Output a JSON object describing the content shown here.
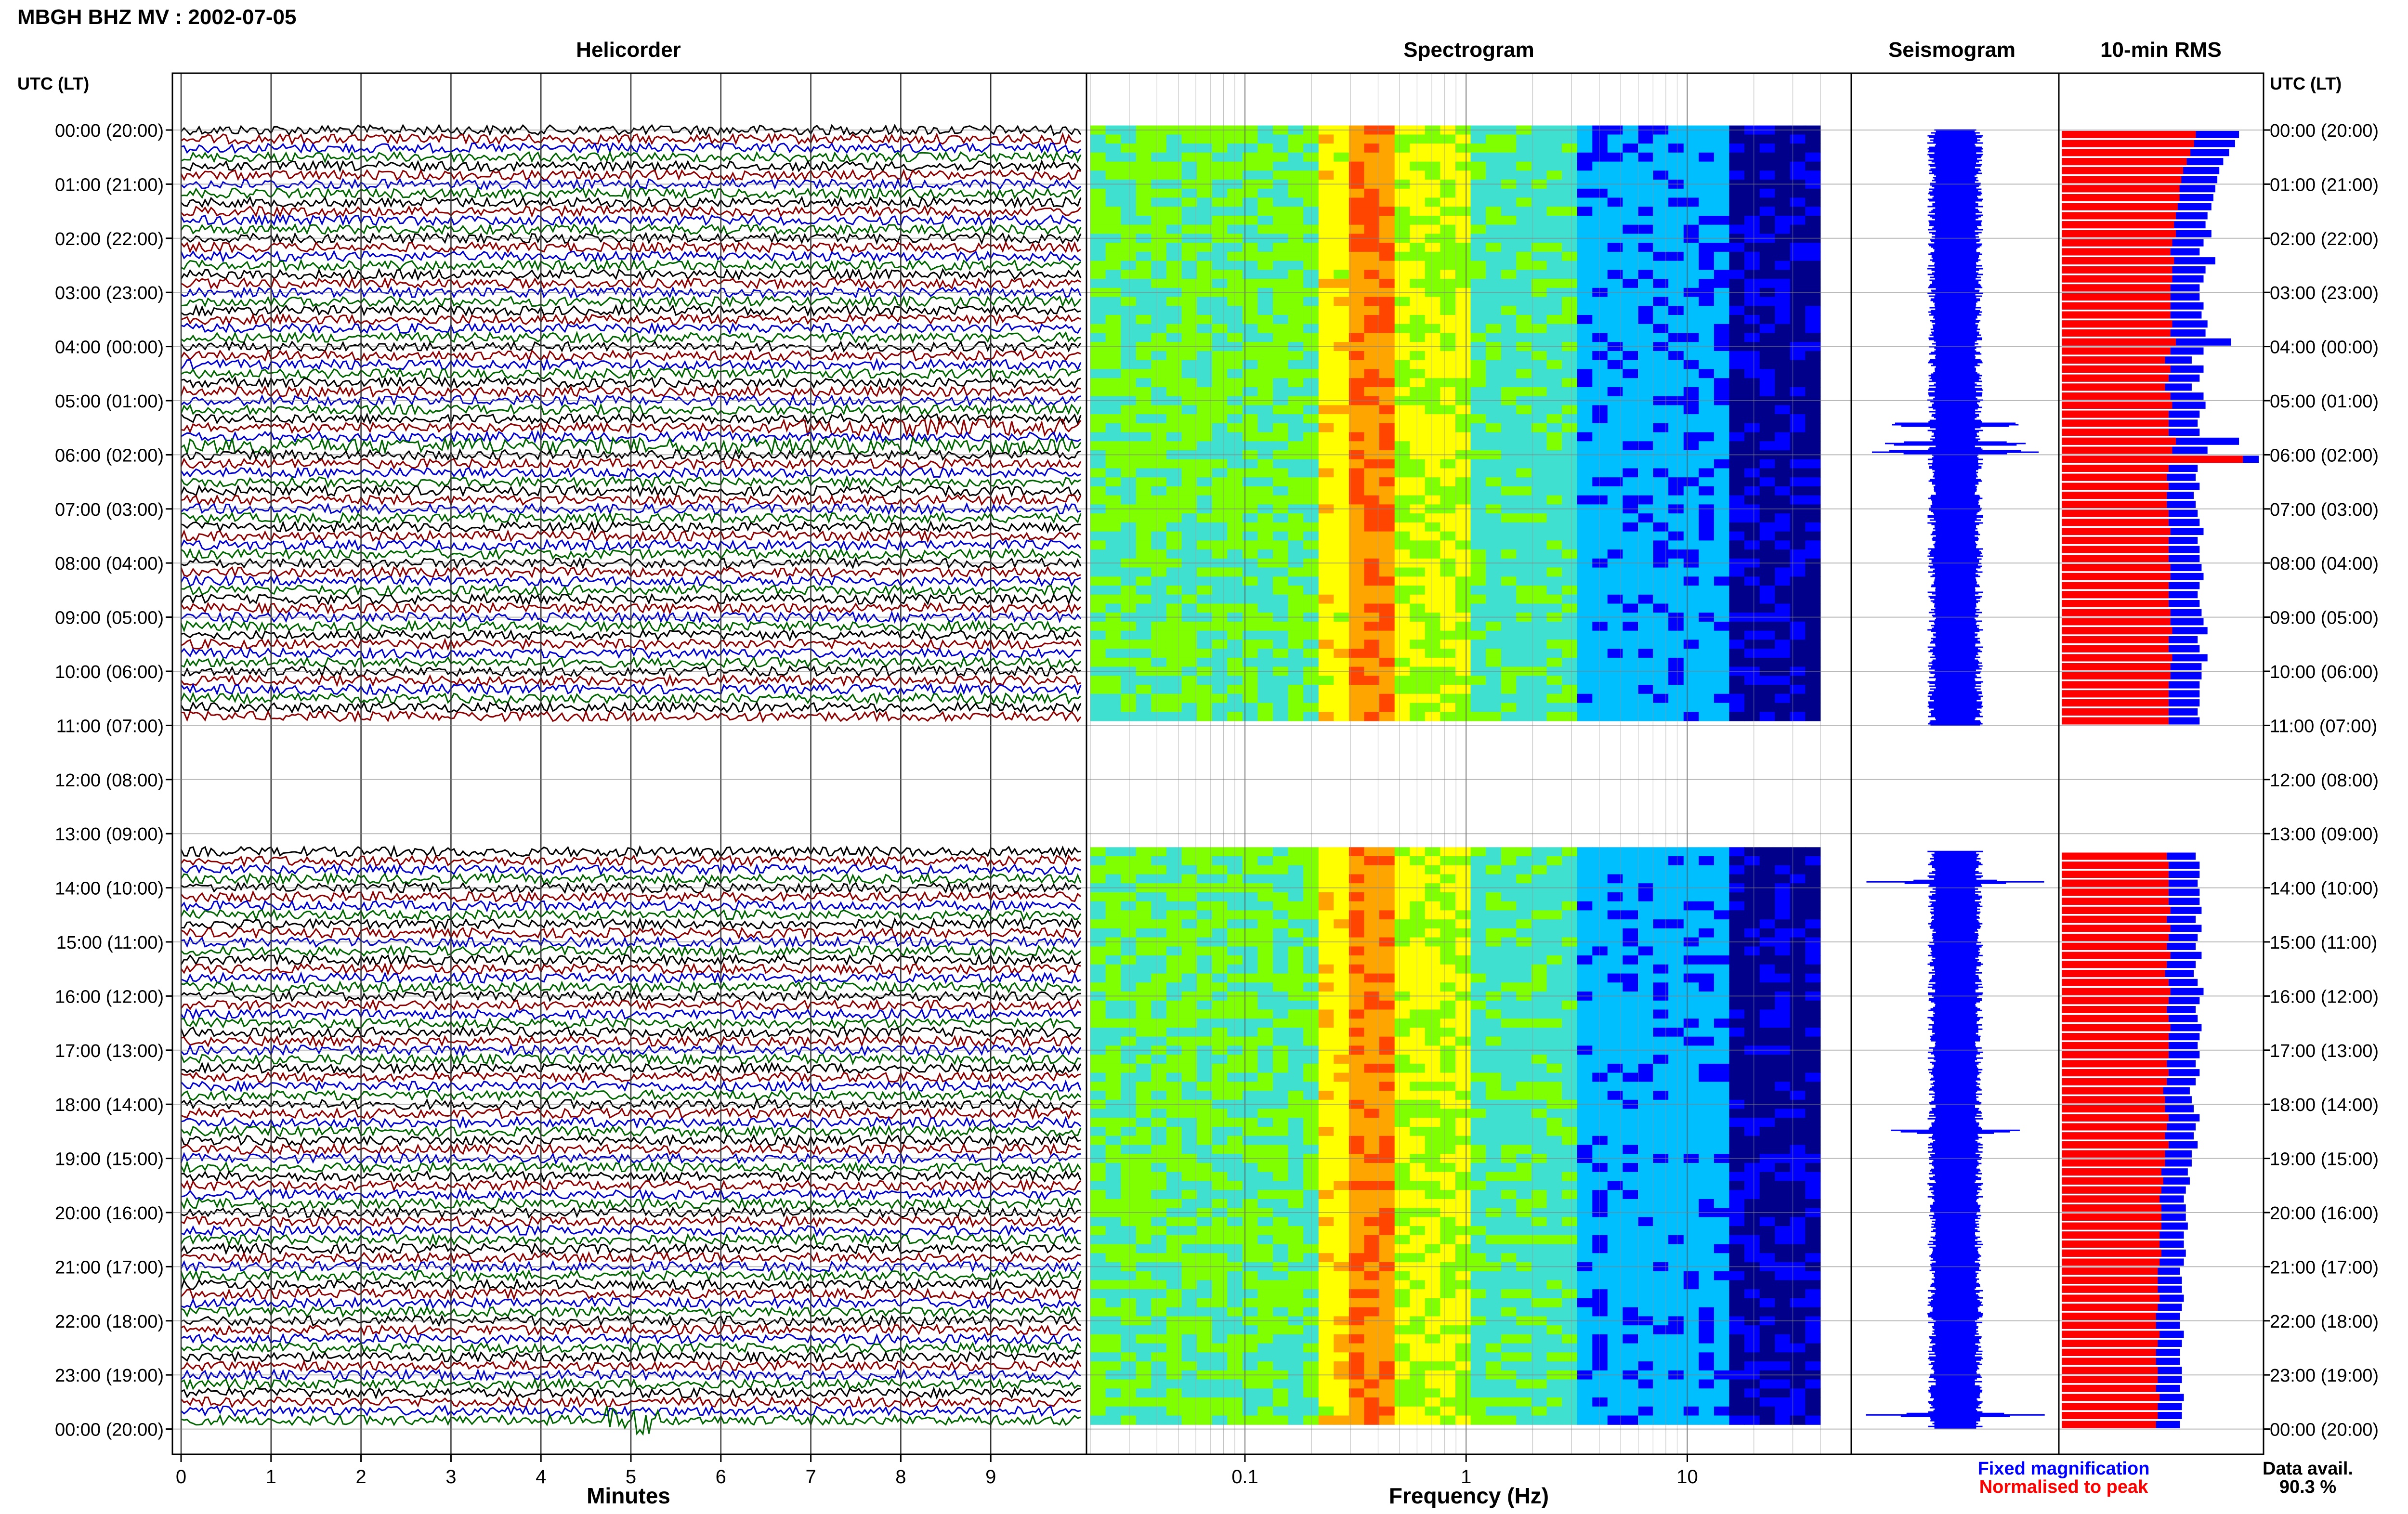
{
  "title": "MBGH BHZ MV : 2002-07-05",
  "colors": {
    "trace_cycle": [
      "#000000",
      "#8b0000",
      "#0000cc",
      "#006400"
    ],
    "rms_fixed": "#0000ff",
    "rms_normalised": "#ff0000",
    "frame": "#000000",
    "grid": "#808080"
  },
  "chart_data": [
    {
      "type": "line",
      "name": "helicorder",
      "title": "Helicorder",
      "xlabel": "Minutes",
      "ylabel": "UTC (LT)",
      "xlim": [
        0,
        10
      ],
      "x_ticks": [
        "0",
        "1",
        "2",
        "3",
        "4",
        "5",
        "6",
        "7",
        "8",
        "9"
      ],
      "y_ticks": [
        "00:00 (20:00)",
        "01:00 (21:00)",
        "02:00 (22:00)",
        "03:00 (23:00)",
        "04:00 (00:00)",
        "05:00 (01:00)",
        "06:00 (02:00)",
        "07:00 (03:00)",
        "08:00 (04:00)",
        "09:00 (05:00)",
        "10:00 (06:00)",
        "11:00 (07:00)",
        "12:00 (08:00)",
        "13:00 (09:00)",
        "14:00 (10:00)",
        "15:00 (11:00)",
        "16:00 (12:00)",
        "17:00 (13:00)",
        "18:00 (14:00)",
        "19:00 (15:00)",
        "20:00 (16:00)",
        "21:00 (17:00)",
        "22:00 (18:00)",
        "23:00 (19:00)",
        "00:00 (20:00)"
      ],
      "right_y_label": "UTC (LT)",
      "trace_minutes_per_line": 10,
      "data_segments_utc_hours": [
        [
          0,
          11
        ],
        [
          13.33,
          24
        ]
      ],
      "gap_utc_hours": [
        11,
        13.33
      ],
      "grid": true
    },
    {
      "type": "heatmap",
      "name": "spectrogram",
      "title": "Spectrogram",
      "xlabel": "Frequency (Hz)",
      "x_scale": "log",
      "xlim": [
        0.02,
        40
      ],
      "x_ticks": [
        "0.1",
        "1",
        "10"
      ],
      "peak_band_hz": [
        0.3,
        0.45
      ],
      "colormap": [
        "#00008b",
        "#0000ff",
        "#00bfff",
        "#40e0d0",
        "#7fff00",
        "#ffff00",
        "#ffa500",
        "#ff4500"
      ],
      "data_segments_utc_hours": [
        [
          0,
          11
        ],
        [
          13.33,
          24
        ]
      ],
      "grid": true
    },
    {
      "type": "line",
      "name": "seismogram",
      "title": "Seismogram",
      "data_segments_utc_hours": [
        [
          0,
          11
        ],
        [
          13.33,
          24
        ]
      ],
      "event_utc_hours": [
        5.45,
        5.8,
        5.95,
        13.9,
        18.5,
        23.75
      ]
    },
    {
      "type": "bar",
      "name": "rms",
      "title": "10-min RMS",
      "series": [
        {
          "name": "Fixed magnification",
          "color": "#0000ff"
        },
        {
          "name": "Normalised to peak",
          "color": "#ff0000"
        }
      ],
      "hours_utc": [
        0.0,
        0.1667,
        0.3333,
        0.5,
        0.6667,
        0.8333,
        1.0,
        1.1667,
        1.3333,
        1.5,
        1.6667,
        1.8333,
        2.0,
        2.1667,
        2.3333,
        2.5,
        2.6667,
        2.8333,
        3.0,
        3.1667,
        3.3333,
        3.5,
        3.6667,
        3.8333,
        4.0,
        4.1667,
        4.3333,
        4.5,
        4.6667,
        4.8333,
        5.0,
        5.1667,
        5.3333,
        5.5,
        5.6667,
        5.8333,
        6.0,
        6.1667,
        6.3333,
        6.5,
        6.6667,
        6.8333,
        7.0,
        7.1667,
        7.3333,
        7.5,
        7.6667,
        7.8333,
        8.0,
        8.1667,
        8.3333,
        8.5,
        8.6667,
        8.8333,
        9.0,
        9.1667,
        9.3333,
        9.5,
        9.6667,
        9.8333,
        10.0,
        10.1667,
        10.3333,
        10.5,
        10.6667,
        10.8333,
        13.3333,
        13.5,
        13.6667,
        13.8333,
        14.0,
        14.1667,
        14.3333,
        14.5,
        14.6667,
        14.8333,
        15.0,
        15.1667,
        15.3333,
        15.5,
        15.6667,
        15.8333,
        16.0,
        16.1667,
        16.3333,
        16.5,
        16.6667,
        16.8333,
        17.0,
        17.1667,
        17.3333,
        17.5,
        17.6667,
        17.8333,
        18.0,
        18.1667,
        18.3333,
        18.5,
        18.6667,
        18.8333,
        19.0,
        19.1667,
        19.3333,
        19.5,
        19.6667,
        19.8333,
        20.0,
        20.1667,
        20.3333,
        20.5,
        20.6667,
        20.8333,
        21.0,
        21.1667,
        21.3333,
        21.5,
        21.6667,
        21.8333,
        22.0,
        22.1667,
        22.3333,
        22.5,
        22.6667,
        22.8333,
        23.0,
        23.1667,
        23.3333,
        23.5,
        23.6667,
        23.8333
      ],
      "values_fixed": [
        0.9,
        0.88,
        0.85,
        0.82,
        0.8,
        0.79,
        0.78,
        0.77,
        0.76,
        0.74,
        0.73,
        0.76,
        0.72,
        0.7,
        0.78,
        0.73,
        0.72,
        0.7,
        0.7,
        0.72,
        0.71,
        0.74,
        0.73,
        0.86,
        0.72,
        0.66,
        0.72,
        0.7,
        0.66,
        0.72,
        0.73,
        0.7,
        0.69,
        0.7,
        0.9,
        0.74,
        1.0,
        0.69,
        0.68,
        0.7,
        0.67,
        0.68,
        0.69,
        0.7,
        0.72,
        0.69,
        0.7,
        0.7,
        0.71,
        0.72,
        0.7,
        0.69,
        0.7,
        0.71,
        0.72,
        0.74,
        0.69,
        0.7,
        0.74,
        0.71,
        0.71,
        0.7,
        0.7,
        0.7,
        0.69,
        0.7,
        0.68,
        0.7,
        0.7,
        0.69,
        0.7,
        0.7,
        0.71,
        0.68,
        0.71,
        0.69,
        0.68,
        0.71,
        0.68,
        0.67,
        0.69,
        0.72,
        0.7,
        0.68,
        0.69,
        0.71,
        0.7,
        0.69,
        0.7,
        0.68,
        0.7,
        0.68,
        0.65,
        0.66,
        0.67,
        0.7,
        0.68,
        0.67,
        0.69,
        0.66,
        0.66,
        0.64,
        0.65,
        0.63,
        0.62,
        0.63,
        0.63,
        0.64,
        0.62,
        0.62,
        0.63,
        0.62,
        0.6,
        0.61,
        0.61,
        0.62,
        0.61,
        0.6,
        0.6,
        0.62,
        0.61,
        0.6,
        0.6,
        0.61,
        0.61,
        0.6,
        0.62,
        0.61,
        0.61,
        0.6
      ],
      "values_normalised": [
        0.74,
        0.73,
        0.71,
        0.69,
        0.67,
        0.66,
        0.65,
        0.65,
        0.64,
        0.63,
        0.62,
        0.63,
        0.61,
        0.6,
        0.62,
        0.61,
        0.61,
        0.6,
        0.6,
        0.6,
        0.6,
        0.61,
        0.6,
        0.63,
        0.6,
        0.57,
        0.6,
        0.59,
        0.57,
        0.6,
        0.61,
        0.59,
        0.59,
        0.59,
        0.63,
        0.61,
        1.0,
        0.59,
        0.58,
        0.59,
        0.58,
        0.58,
        0.59,
        0.59,
        0.6,
        0.59,
        0.59,
        0.59,
        0.6,
        0.6,
        0.59,
        0.59,
        0.59,
        0.6,
        0.6,
        0.61,
        0.59,
        0.59,
        0.61,
        0.6,
        0.6,
        0.59,
        0.59,
        0.59,
        0.59,
        0.59,
        0.58,
        0.59,
        0.59,
        0.59,
        0.59,
        0.59,
        0.6,
        0.58,
        0.6,
        0.59,
        0.58,
        0.6,
        0.58,
        0.57,
        0.59,
        0.6,
        0.59,
        0.58,
        0.59,
        0.6,
        0.59,
        0.59,
        0.59,
        0.58,
        0.59,
        0.58,
        0.56,
        0.57,
        0.57,
        0.59,
        0.58,
        0.57,
        0.59,
        0.57,
        0.57,
        0.55,
        0.56,
        0.55,
        0.54,
        0.55,
        0.55,
        0.55,
        0.54,
        0.54,
        0.55,
        0.54,
        0.53,
        0.53,
        0.53,
        0.54,
        0.53,
        0.52,
        0.52,
        0.54,
        0.53,
        0.52,
        0.52,
        0.53,
        0.53,
        0.52,
        0.54,
        0.53,
        0.53,
        0.52
      ],
      "right_y_label": "UTC (LT)"
    }
  ],
  "legend": {
    "fixed": "Fixed magnification",
    "normalised": "Normalised to peak"
  },
  "data_availability": {
    "label": "Data avail.",
    "value": "90.3 %"
  }
}
